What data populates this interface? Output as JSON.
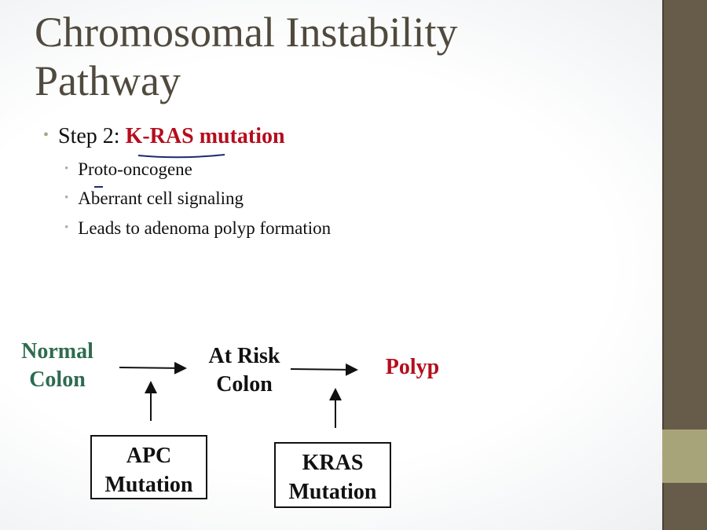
{
  "title": "Chromosomal Instability Pathway",
  "bullet": {
    "prefix": "Step 2: ",
    "highlight": "K-RAS mutation"
  },
  "sub_bullets": [
    "Proto-oncogene",
    "Aberrant cell signaling",
    "Leads to adenoma polyp formation"
  ],
  "diagram": {
    "normal": "Normal Colon",
    "at_risk": "At Risk Colon",
    "polyp": "Polyp",
    "apc": "APC Mutation",
    "kras": "KRAS Mutation"
  },
  "colors": {
    "title": "#4f4a3d",
    "highlight": "#b50d1d",
    "normal": "#2e6b50",
    "sidebar": "#675b4a",
    "sidebar_band": "#a8a479",
    "annotation": "#1c2a6e"
  }
}
